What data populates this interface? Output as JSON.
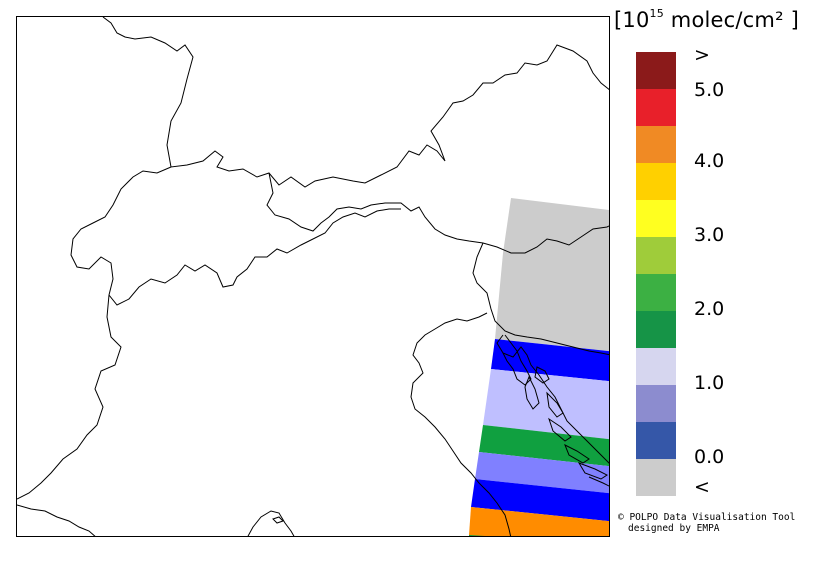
{
  "legend": {
    "units_prefix": "[10",
    "units_exponent": "15",
    "units_suffix": " molec/cm² ]",
    "ticks": [
      ">",
      "5.0",
      "4.0",
      "3.0",
      "2.0",
      "1.0",
      "0.0",
      "<"
    ],
    "bins": [
      {
        "color": "#8b1a1a"
      },
      {
        "color": "#e8202a"
      },
      {
        "color": "#f08a24"
      },
      {
        "color": "#ffd000"
      },
      {
        "color": "#ffff20"
      },
      {
        "color": "#9fcc3a"
      },
      {
        "color": "#3cb043"
      },
      {
        "color": "#169447"
      },
      {
        "color": "#d6d6ef"
      },
      {
        "color": "#8c8ccf"
      },
      {
        "color": "#3557a8"
      },
      {
        "color": "#cccccc"
      }
    ]
  },
  "credit": {
    "line1": "© POLPO Data Visualisation Tool",
    "line2": "designed by EMPA"
  },
  "colors": {
    "no_data_grey": "#cccccc",
    "blue": "#0000ff",
    "light_lavender": "#bfbfff",
    "green": "#10a040",
    "periwinkle": "#8080ff",
    "orange": "#ff8c00",
    "outline": "#000000"
  }
}
